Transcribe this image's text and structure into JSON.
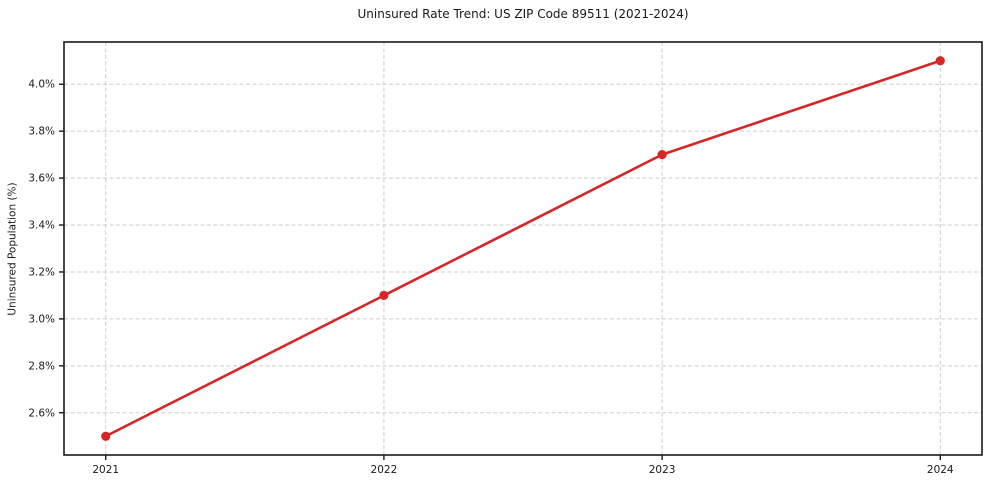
{
  "page": {
    "title": "Uninsured Rate Trend: US ZIP Code 89511 (2021-2024)"
  },
  "chart_data": {
    "type": "line",
    "title": "Uninsured Rate Trend: US ZIP Code 89511 (2021-2024)",
    "xlabel": "",
    "ylabel": "Uninsured Population (%)",
    "x": [
      2021,
      2022,
      2023,
      2024
    ],
    "values": [
      2.5,
      3.1,
      3.7,
      4.1
    ],
    "xtick_labels": [
      "2021",
      "2022",
      "2023",
      "2024"
    ],
    "yticks": [
      2.6,
      2.8,
      3.0,
      3.2,
      3.4,
      3.6,
      3.8,
      4.0
    ],
    "ytick_labels": [
      "2.6%",
      "2.8%",
      "3.0%",
      "3.2%",
      "3.4%",
      "3.6%",
      "3.8%",
      "4.0%"
    ],
    "xlim": [
      2020.85,
      2024.15
    ],
    "ylim": [
      2.42,
      4.18
    ],
    "grid": true,
    "grid_style": "dashed",
    "legend": "none",
    "line_color": "#d62728",
    "marker": "circle",
    "marker_color": "#d62728",
    "grid_color": "#cdcdcd",
    "spine_color": "#1a1a1a",
    "text_color": "#1a1a1a",
    "background": "#ffffff"
  }
}
